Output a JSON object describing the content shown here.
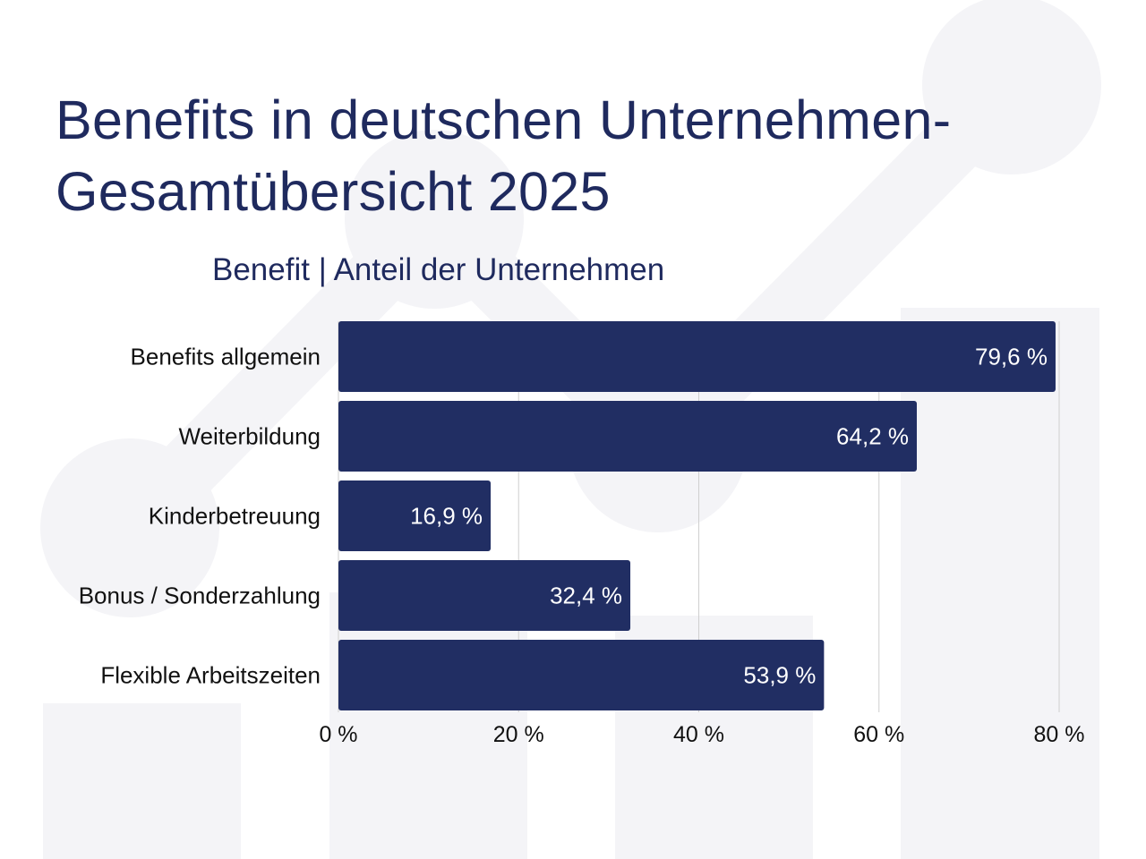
{
  "title_line1": "Benefits in deutschen Unternehmen-",
  "title_line2": "Gesamtübersicht 2025",
  "colors": {
    "bar": "#212e63",
    "title": "#1f2a5e",
    "grid": "#cfcfcf",
    "decor": "#f4f4f7"
  },
  "chart_data": {
    "type": "bar",
    "orientation": "horizontal",
    "title": "Benefit | Anteil der Unternehmen",
    "categories": [
      "Benefits allgemein",
      "Weiterbildung",
      "Kinderbetreuung",
      "Bonus / Sonderzahlung",
      "Flexible Arbeitszeiten"
    ],
    "values": [
      79.6,
      64.2,
      16.9,
      32.4,
      53.9
    ],
    "value_labels": [
      "79,6 %",
      "64,2 %",
      "16,9 %",
      "32,4 %",
      "53,9 %"
    ],
    "xlim": [
      0,
      80
    ],
    "xticks": [
      0,
      20,
      40,
      60,
      80
    ],
    "xtick_labels": [
      "0 %",
      "20 %",
      "40 %",
      "60 %",
      "80 %"
    ],
    "xlabel": "",
    "ylabel": "",
    "grid": "vertical"
  }
}
